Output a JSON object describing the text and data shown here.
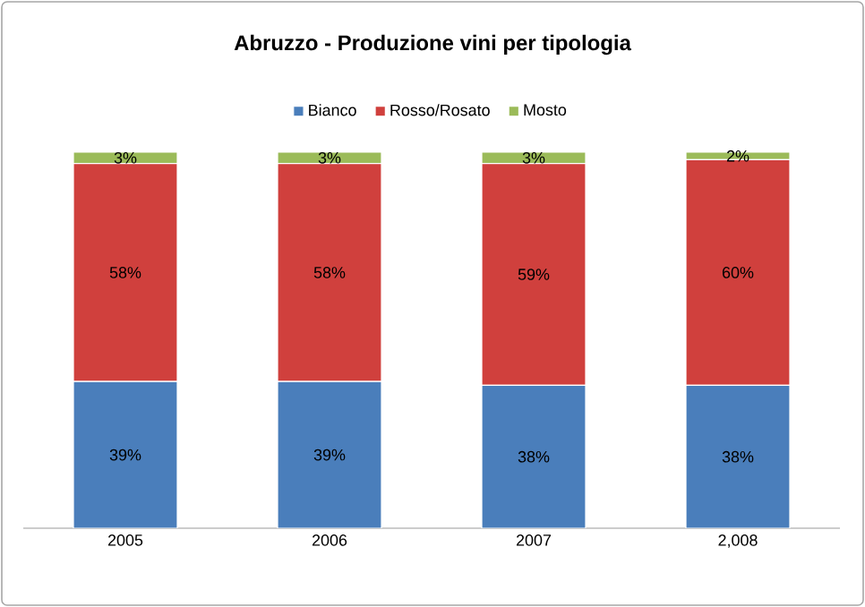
{
  "chart_data": {
    "type": "bar",
    "stacked": true,
    "title": "Abruzzo - Produzione vini per tipologia",
    "categories": [
      "2005",
      "2006",
      "2007",
      "2,008"
    ],
    "series": [
      {
        "name": "Bianco",
        "color": "#4a7ebb",
        "values": [
          39,
          39,
          38,
          38
        ],
        "value_labels": [
          "39%",
          "39%",
          "38%",
          "38%"
        ]
      },
      {
        "name": "Rosso/Rosato",
        "color": "#d0403d",
        "values": [
          58,
          58,
          59,
          60
        ],
        "value_labels": [
          "58%",
          "58%",
          "59%",
          "60%"
        ]
      },
      {
        "name": "Mosto",
        "color": "#9bbb59",
        "values": [
          3,
          3,
          3,
          2
        ],
        "value_labels": [
          "3%",
          "3%",
          "3%",
          "2%"
        ]
      }
    ],
    "ylim": [
      0,
      100
    ],
    "tick_labels": "x",
    "legend": "top"
  }
}
